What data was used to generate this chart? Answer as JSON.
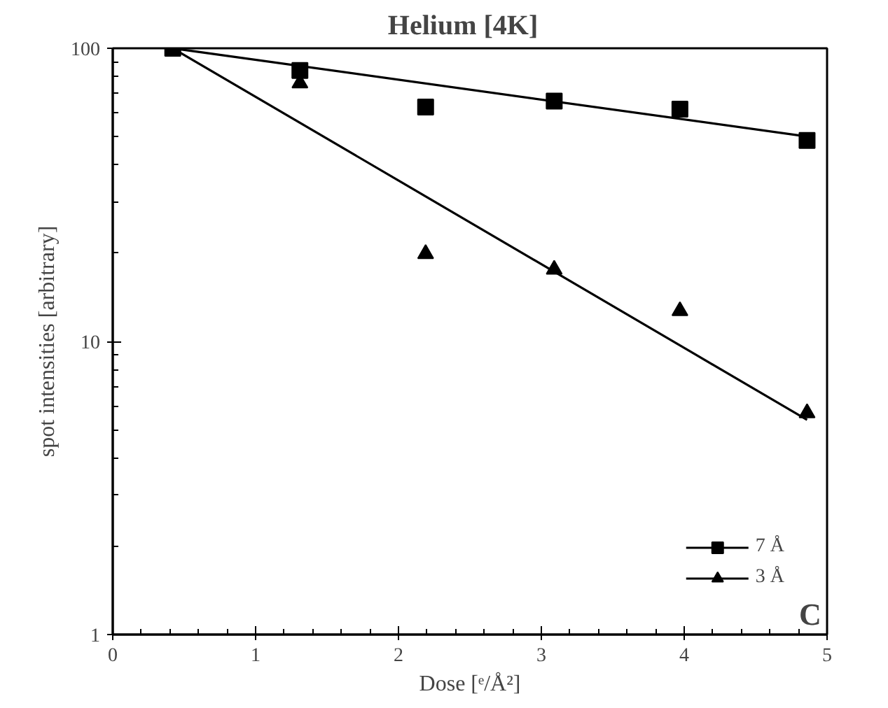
{
  "chart_data": {
    "type": "scatter",
    "title": "Helium   [4K]",
    "xlabel": "Dose [ᵉ/Å²]",
    "ylabel": "spot intensities [arbitrary]",
    "log": "y",
    "xlim": [
      0,
      5
    ],
    "xticks": [
      0,
      1,
      2,
      3,
      4,
      5
    ],
    "ylim": [
      1,
      100
    ],
    "yticks": [
      1,
      10,
      100
    ],
    "grid": false,
    "legend": "bottom right",
    "series": [
      {
        "name": "7 Å",
        "type": "scatter",
        "marker": "square",
        "color": "#000000",
        "x": [
          0.42,
          1.31,
          2.19,
          3.09,
          3.97,
          4.86
        ],
        "values": [
          100,
          84,
          63,
          66,
          62,
          48.5
        ]
      },
      {
        "color": "#000000",
        "x": [
          0.42,
          4.86
        ],
        "values": [
          100,
          50
        ],
        "type": "line"
      },
      {
        "name": "3 Å",
        "type": "scatter",
        "marker": "triangle",
        "color": "#000000",
        "x": [
          1.31,
          2.19,
          3.09,
          3.97,
          4.86
        ],
        "values": [
          76,
          19.9,
          17.6,
          12.7,
          5.7
        ]
      },
      {
        "type": "line",
        "color": "#000000",
        "x": [
          0.42,
          4.86
        ],
        "values": [
          100,
          5.4
        ]
      }
    ],
    "annotations": [
      "C"
    ]
  }
}
